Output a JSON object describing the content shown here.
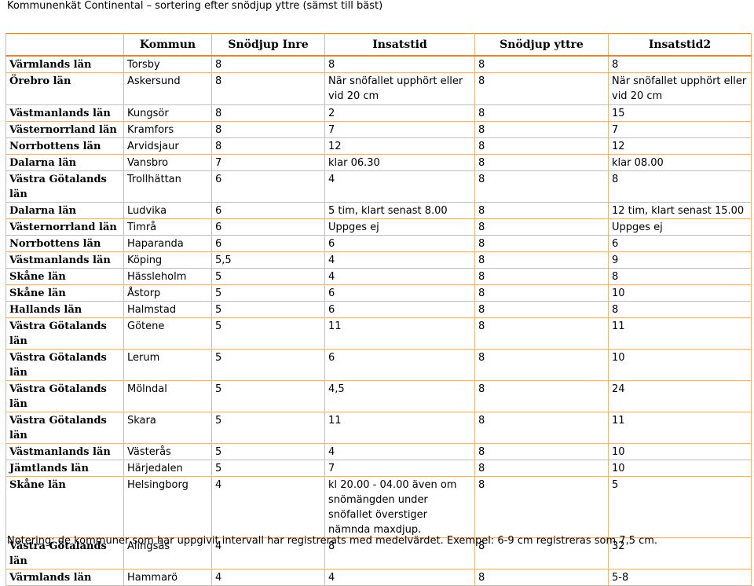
{
  "title": "Kommunenkät Continental – sortering efter snödjup yttre (sämst till bäst)",
  "table": {
    "headers": [
      "",
      "Kommun",
      "Snödjup Inre",
      "Insatstid",
      "Snödjup yttre",
      "Insatstid2"
    ],
    "rows": [
      [
        "Värmlands län",
        "Torsby",
        "8",
        "8",
        "8",
        "8"
      ],
      [
        "Örebro län",
        "Askersund",
        "8",
        "När snöfallet upphört eller vid 20 cm",
        "8",
        "När snöfallet upphört eller vid 20 cm"
      ],
      [
        "Västmanlands län",
        "Kungsör",
        "8",
        "2",
        "8",
        "15"
      ],
      [
        "Västernorrland län",
        "Kramfors",
        "8",
        "7",
        "8",
        "7"
      ],
      [
        "Norrbottens län",
        "Arvidsjaur",
        "8",
        "12",
        "8",
        "12"
      ],
      [
        "Dalarna län",
        "Vansbro",
        "7",
        "klar 06.30",
        "8",
        "klar 08.00"
      ],
      [
        "Västra Götalands län",
        "Trollhättan",
        "6",
        "4",
        "8",
        "8"
      ],
      [
        "Dalarna län",
        "Ludvika",
        "6",
        "5 tim, klart senast 8.00",
        "8",
        "12 tim, klart senast 15.00"
      ],
      [
        "Västernorrland län",
        "Timrå",
        "6",
        "Uppges ej",
        "8",
        "Uppges ej"
      ],
      [
        "Norrbottens län",
        "Haparanda",
        "6",
        "6",
        "8",
        "6"
      ],
      [
        "Västmanlands län",
        "Köping",
        "5,5",
        "4",
        "8",
        "9"
      ],
      [
        "Skåne län",
        "Hässleholm",
        "5",
        "4",
        "8",
        "8"
      ],
      [
        "Skåne län",
        "Åstorp",
        "5",
        "6",
        "8",
        "10"
      ],
      [
        "Hallands län",
        "Halmstad",
        "5",
        "6",
        "8",
        "8"
      ],
      [
        "Västra Götalands län",
        "Götene",
        "5",
        "11",
        "8",
        "11"
      ],
      [
        "Västra Götalands län",
        "Lerum",
        "5",
        "6",
        "8",
        "10"
      ],
      [
        "Västra Götalands län",
        "Mölndal",
        "5",
        "4,5",
        "8",
        "24"
      ],
      [
        "Västra Götalands län",
        "Skara",
        "5",
        "11",
        "8",
        "11"
      ],
      [
        "Västmanlands län",
        "Västerås",
        "5",
        "4",
        "8",
        "10"
      ],
      [
        "Jämtlands län",
        "Härjedalen",
        "5",
        "7",
        "8",
        "10"
      ],
      [
        "Skåne län",
        "Helsingborg",
        "4",
        "kl 20.00 - 04.00 även om snömängden under snöfallet överstiger nämnda maxdjup.",
        "8",
        "5"
      ],
      [
        "Västra Götalands län",
        "Alingsås",
        "4",
        "8",
        "8",
        "32"
      ],
      [
        "Värmlands län",
        "Hammarö",
        "4",
        "4",
        "8",
        "5-8"
      ]
    ]
  },
  "note": "Notering: de kommuner som har uppgivit intervall har registrerats med medelvärdet. Exempel: 6-9 cm registreras som 7,5 cm."
}
